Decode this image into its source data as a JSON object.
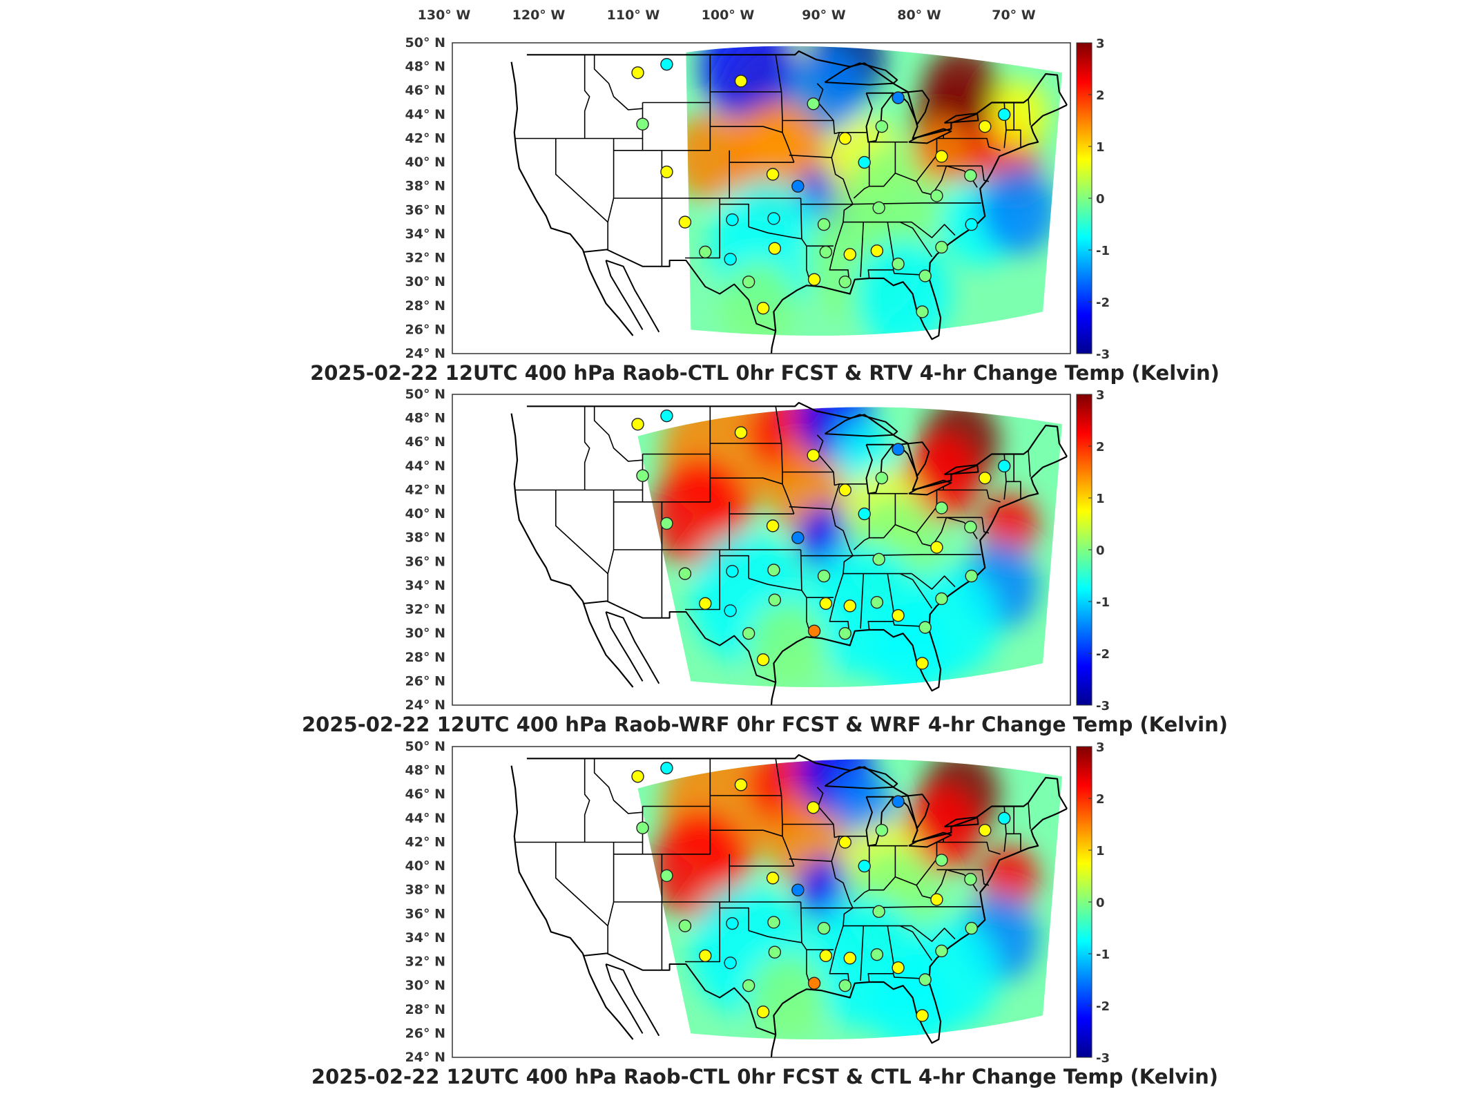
{
  "figure": {
    "top_longitude_labels": [
      "130",
      "120",
      "110",
      "100",
      "90",
      "80",
      "70"
    ],
    "longitude_hemisphere": "W",
    "latitude_hemisphere": "N",
    "degree_symbol": "°"
  },
  "panels": [
    {
      "title": "2025-02-22 12UTC 400 hPa Raob-CTL 0hr FCST & RTV 4-hr Change Temp (Kelvin)",
      "latitude_labels": [
        "50",
        "48",
        "46",
        "44",
        "42",
        "40",
        "38",
        "36",
        "34",
        "32",
        "30",
        "28",
        "26",
        "24"
      ],
      "colorbar_labels": [
        "3",
        "2",
        "1",
        "0",
        "-1",
        "-2",
        "-3"
      ]
    },
    {
      "title": "2025-02-22 12UTC 400 hPa Raob-WRF 0hr FCST & WRF 4-hr Change Temp (Kelvin)",
      "latitude_labels": [
        "50",
        "48",
        "46",
        "44",
        "42",
        "40",
        "38",
        "36",
        "34",
        "32",
        "30",
        "28",
        "26",
        "24"
      ],
      "colorbar_labels": [
        "3",
        "2",
        "1",
        "0",
        "-1",
        "-2",
        "-3"
      ]
    },
    {
      "title": "2025-02-22 12UTC 400 hPa Raob-CTL 0hr FCST & CTL 4-hr Change Temp (Kelvin)",
      "latitude_labels": [
        "50",
        "48",
        "46",
        "44",
        "42",
        "40",
        "38",
        "36",
        "34",
        "32",
        "30",
        "28",
        "26",
        "24"
      ],
      "colorbar_labels": [
        "3",
        "2",
        "1",
        "0",
        "-1",
        "-2",
        "-3"
      ]
    }
  ],
  "colormap": {
    "name": "jet",
    "range": [
      -3,
      3
    ],
    "stops": [
      "#00008f",
      "#0000ff",
      "#0080ff",
      "#00ffff",
      "#80ff80",
      "#ffff00",
      "#ff8000",
      "#ff0000",
      "#800000"
    ]
  }
}
